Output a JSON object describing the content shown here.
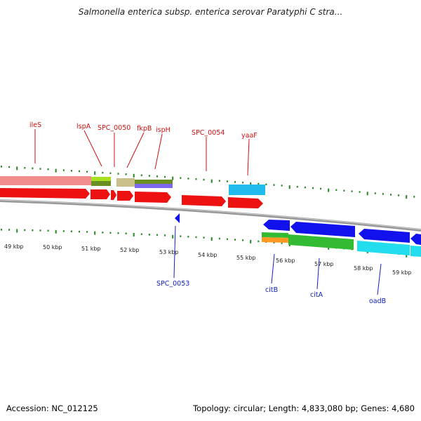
{
  "title": "Salmonella enterica subsp. enterica serovar Paratyphi C stra...",
  "footer": {
    "accession": "Accession: NC_012125",
    "summary": "Topology: circular; Length: 4,833,080 bp; Genes: 4,680"
  },
  "scale_labels": [
    "49 kbp",
    "50 kbp",
    "51 kbp",
    "52 kbp",
    "53 kbp",
    "54 kbp",
    "55 kbp",
    "56 kbp",
    "57 kbp",
    "58 kbp",
    "59 kbp"
  ],
  "genes_top": [
    "ileS",
    "lspA",
    "SPC_0050",
    "fkpB",
    "ispH",
    "SPC_0054",
    "yaaF"
  ],
  "genes_bottom": [
    "SPC_0053",
    "citB",
    "citA",
    "oadB"
  ],
  "colors": {
    "forward_cds": "#ee1111",
    "reverse_cds": "#1111ee",
    "backbone": "#888888",
    "ticks": "#228822",
    "label_top": "#cc1111",
    "label_bottom": "#1122bb"
  }
}
